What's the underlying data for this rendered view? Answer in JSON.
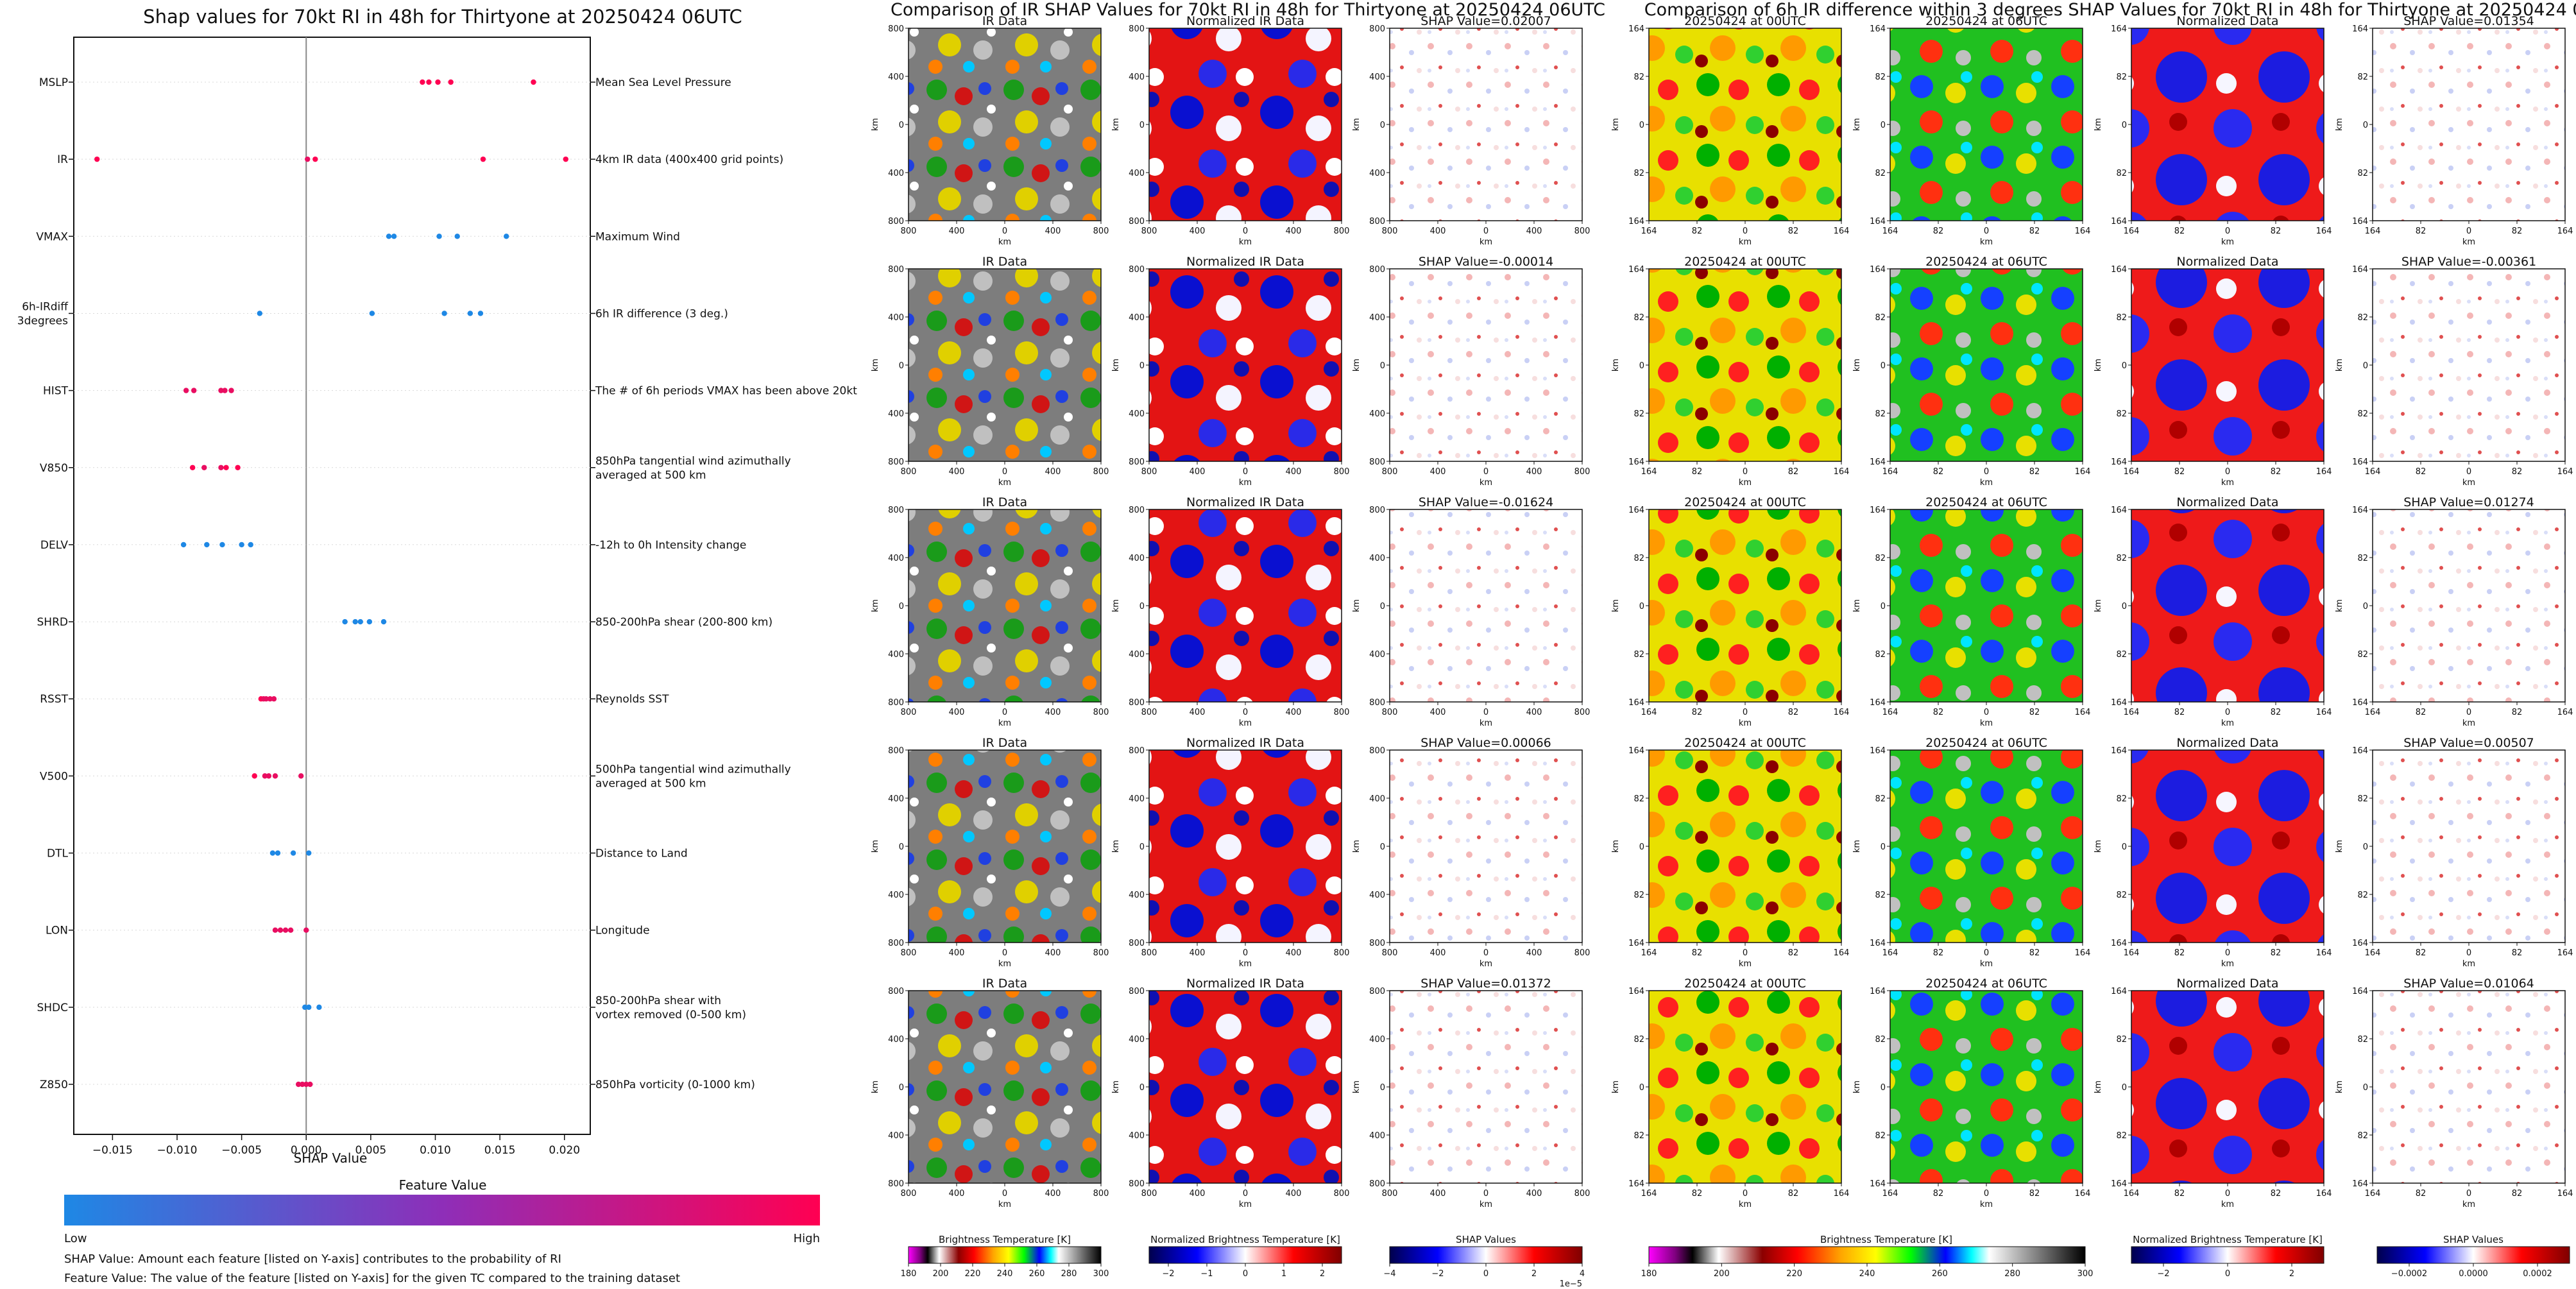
{
  "colors": {
    "low": "#1e88e5",
    "high": "#ff0052",
    "mid": "#8e2eb8",
    "axis": "#111111",
    "bg": "#ffffff"
  },
  "left_panel": {
    "title": "Shap values for 70kt RI in 48h for Thirtyone at 20250424 06UTC",
    "xlabel": "SHAP Value",
    "colorbar_title": "Feature Value",
    "colorbar_low": "Low",
    "colorbar_high": "High",
    "note1": "SHAP Value: Amount each feature [listed on Y-axis] contributes to the probability of RI",
    "note2": "Feature Value: The value of the feature [listed on Y-axis] for the given TC compared to the training dataset"
  },
  "middle_panel": {
    "title": "Comparison of IR SHAP Values for 70kt RI in 48h for Thirtyone at 20250424 06UTC",
    "col_titles": [
      "IR Data",
      "Normalized IR Data"
    ],
    "shap_titles": [
      "SHAP Value=0.02007",
      "SHAP Value=-0.00014",
      "SHAP Value=-0.01624",
      "SHAP Value=0.00066",
      "SHAP Value=0.01372"
    ],
    "ticks": [
      "800",
      "400",
      "0",
      "400",
      "800"
    ],
    "axis_label": "km",
    "colorbars": [
      {
        "label": "Brightness Temperature [K]",
        "ticks": [
          "180",
          "200",
          "220",
          "240",
          "260",
          "280",
          "300"
        ]
      },
      {
        "label": "Normalized Brightness Temperature [K]",
        "ticks": [
          "−2",
          "−1",
          "0",
          "1",
          "2"
        ]
      },
      {
        "label": "SHAP Values",
        "ticks": [
          "−4",
          "−2",
          "0",
          "2",
          "4"
        ],
        "offset": "1e−5"
      }
    ]
  },
  "right_panel": {
    "title": "Comparison of 6h IR difference within 3 degrees SHAP Values for 70kt RI in 48h for Thirtyone at 20250424 06UTC",
    "col_titles": [
      "20250424 at 00UTC",
      "20250424 at 06UTC",
      "Normalized Data"
    ],
    "shap_titles": [
      "SHAP Value=0.01354",
      "SHAP Value=-0.00361",
      "SHAP Value=0.01274",
      "SHAP Value=0.00507",
      "SHAP Value=0.01064"
    ],
    "ticks": [
      "164",
      "82",
      "0",
      "82",
      "164"
    ],
    "axis_label": "km",
    "colorbars": [
      {
        "label": "Brightness Temperature [K]",
        "ticks": [
          "180",
          "200",
          "220",
          "240",
          "260",
          "280",
          "300"
        ]
      },
      {
        "label": "Normalized Brightness Temperature [K]",
        "ticks": [
          "−2",
          "0",
          "2"
        ]
      },
      {
        "label": "SHAP Values",
        "ticks": [
          "−0.0002",
          "0.0000",
          "0.0002"
        ]
      }
    ]
  },
  "chart_data": {
    "type": "scatter",
    "title": "Shap values for 70kt RI in 48h for Thirtyone at 20250424 06UTC",
    "xlabel": "SHAP Value",
    "xlim": [
      -0.018,
      0.022
    ],
    "xticks": [
      -0.015,
      -0.01,
      -0.005,
      0.0,
      0.005,
      0.01,
      0.015,
      0.02
    ],
    "xtick_labels": [
      "−0.015",
      "−0.010",
      "−0.005",
      "0.000",
      "0.005",
      "0.010",
      "0.015",
      "0.020"
    ],
    "features": [
      {
        "name": "MSLP",
        "desc": [
          "Mean Sea Level Pressure"
        ],
        "points": [
          {
            "x": 0.009,
            "v": 1
          },
          {
            "x": 0.0095,
            "v": 1
          },
          {
            "x": 0.0102,
            "v": 1
          },
          {
            "x": 0.0112,
            "v": 1
          },
          {
            "x": 0.0176,
            "v": 1
          }
        ]
      },
      {
        "name": "IR",
        "desc": [
          "4km IR data (400x400 grid points)"
        ],
        "points": [
          {
            "x": -0.0162,
            "v": 1
          },
          {
            "x": 0.0001,
            "v": 0.9
          },
          {
            "x": 0.0007,
            "v": 1
          },
          {
            "x": 0.0137,
            "v": 1
          },
          {
            "x": 0.0201,
            "v": 1
          }
        ]
      },
      {
        "name": "VMAX",
        "desc": [
          "Maximum Wind"
        ],
        "points": [
          {
            "x": 0.0064,
            "v": 0
          },
          {
            "x": 0.0068,
            "v": 0
          },
          {
            "x": 0.0103,
            "v": 0
          },
          {
            "x": 0.0117,
            "v": 0
          },
          {
            "x": 0.0155,
            "v": 0
          }
        ]
      },
      {
        "name": "6h-IRdiff 3degrees",
        "desc": [
          "6h IR difference (3 deg.)"
        ],
        "points": [
          {
            "x": -0.0036,
            "v": 0
          },
          {
            "x": 0.0051,
            "v": 0
          },
          {
            "x": 0.0107,
            "v": 0
          },
          {
            "x": 0.0127,
            "v": 0
          },
          {
            "x": 0.0135,
            "v": 0
          }
        ]
      },
      {
        "name": "HIST",
        "desc": [
          "The # of 6h periods VMAX has been above 20kt"
        ],
        "points": [
          {
            "x": -0.0093,
            "v": 0.9
          },
          {
            "x": -0.0087,
            "v": 0.9
          },
          {
            "x": -0.0066,
            "v": 0.9
          },
          {
            "x": -0.0063,
            "v": 0.9
          },
          {
            "x": -0.0058,
            "v": 0.9
          }
        ]
      },
      {
        "name": "V850",
        "desc": [
          "850hPa tangential wind azimuthally",
          "averaged at 500 km"
        ],
        "points": [
          {
            "x": -0.0088,
            "v": 1
          },
          {
            "x": -0.0079,
            "v": 0.9
          },
          {
            "x": -0.0066,
            "v": 0.9
          },
          {
            "x": -0.0062,
            "v": 1
          },
          {
            "x": -0.0053,
            "v": 1
          }
        ]
      },
      {
        "name": "DELV",
        "desc": [
          "-12h to 0h Intensity change"
        ],
        "points": [
          {
            "x": -0.0095,
            "v": 0
          },
          {
            "x": -0.0077,
            "v": 0
          },
          {
            "x": -0.0065,
            "v": 0
          },
          {
            "x": -0.005,
            "v": 0
          },
          {
            "x": -0.0043,
            "v": 0
          }
        ]
      },
      {
        "name": "SHRD",
        "desc": [
          "850-200hPa shear (200-800 km)"
        ],
        "points": [
          {
            "x": 0.003,
            "v": 0
          },
          {
            "x": 0.0038,
            "v": 0
          },
          {
            "x": 0.0042,
            "v": 0
          },
          {
            "x": 0.0049,
            "v": 0
          },
          {
            "x": 0.006,
            "v": 0
          }
        ]
      },
      {
        "name": "RSST",
        "desc": [
          "Reynolds SST"
        ],
        "points": [
          {
            "x": -0.0035,
            "v": 1
          },
          {
            "x": -0.0033,
            "v": 0.9
          },
          {
            "x": -0.0031,
            "v": 0.9
          },
          {
            "x": -0.0028,
            "v": 0.9
          },
          {
            "x": -0.0025,
            "v": 0.9
          }
        ]
      },
      {
        "name": "V500",
        "desc": [
          "500hPa tangential wind azimuthally",
          "averaged at 500 km"
        ],
        "points": [
          {
            "x": -0.004,
            "v": 1
          },
          {
            "x": -0.0032,
            "v": 0.9
          },
          {
            "x": -0.0029,
            "v": 0.9
          },
          {
            "x": -0.0024,
            "v": 0.9
          },
          {
            "x": -0.0004,
            "v": 0.9
          }
        ]
      },
      {
        "name": "DTL",
        "desc": [
          "Distance to Land"
        ],
        "points": [
          {
            "x": -0.0026,
            "v": 0
          },
          {
            "x": -0.0022,
            "v": 0
          },
          {
            "x": -0.001,
            "v": 0
          },
          {
            "x": 0.0002,
            "v": 0
          }
        ]
      },
      {
        "name": "LON",
        "desc": [
          "Longitude"
        ],
        "points": [
          {
            "x": -0.0024,
            "v": 0.9
          },
          {
            "x": -0.002,
            "v": 0.9
          },
          {
            "x": -0.0016,
            "v": 0.9
          },
          {
            "x": -0.0012,
            "v": 0.9
          },
          {
            "x": -0.0,
            "v": 0.9
          }
        ]
      },
      {
        "name": "SHDC",
        "desc": [
          "850-200hPa shear with",
          "vortex removed (0-500 km)"
        ],
        "points": [
          {
            "x": -0.0001,
            "v": 0
          },
          {
            "x": 0.0002,
            "v": 0
          },
          {
            "x": 0.001,
            "v": 0
          }
        ]
      },
      {
        "name": "Z850",
        "desc": [
          "850hPa vorticity (0-1000 km)"
        ],
        "points": [
          {
            "x": -0.0006,
            "v": 0.9
          },
          {
            "x": -0.0003,
            "v": 0.9
          },
          {
            "x": 0.0,
            "v": 0.9
          },
          {
            "x": 0.0003,
            "v": 0.9
          }
        ]
      }
    ]
  }
}
